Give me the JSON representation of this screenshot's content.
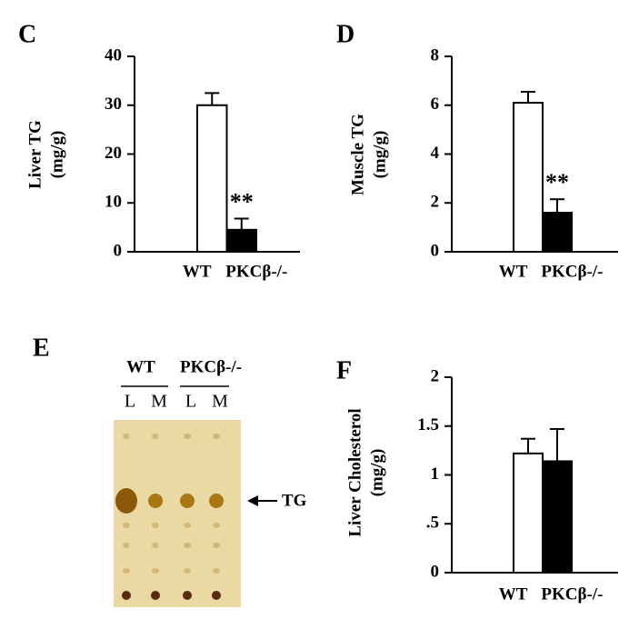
{
  "chart_data": [
    {
      "type": "bar",
      "label": "C",
      "ylabel": [
        "Liver TG",
        "(mg/g)"
      ],
      "categories": [
        "WT",
        "PKCβ-/-"
      ],
      "values": [
        30,
        4.5
      ],
      "errors": [
        2.5,
        2.3
      ],
      "colors": [
        "#ffffff",
        "#000000"
      ],
      "ylim": [
        0,
        40
      ],
      "yticks": [
        0,
        10,
        20,
        30,
        40
      ],
      "annotation": "**"
    },
    {
      "type": "bar",
      "label": "D",
      "ylabel": [
        "Muscle TG",
        "(mg/g)"
      ],
      "categories": [
        "WT",
        "PKCβ-/-"
      ],
      "values": [
        6.1,
        1.6
      ],
      "errors": [
        0.45,
        0.55
      ],
      "colors": [
        "#ffffff",
        "#000000"
      ],
      "ylim": [
        0,
        8
      ],
      "yticks": [
        0,
        2,
        4,
        6,
        8
      ],
      "annotation": "**"
    },
    {
      "type": "image",
      "label": "E",
      "groups": [
        "WT",
        "PKCβ-/-"
      ],
      "lanes": [
        "L",
        "M",
        "L",
        "M"
      ],
      "annotation": "TG"
    },
    {
      "type": "bar",
      "label": "F",
      "ylabel": [
        "Liver Cholesterol",
        "(mg/g)"
      ],
      "categories": [
        "WT",
        "PKCβ-/-"
      ],
      "values": [
        1.22,
        1.14
      ],
      "errors": [
        0.15,
        0.33
      ],
      "colors": [
        "#ffffff",
        "#000000"
      ],
      "ylim": [
        0,
        2
      ],
      "yticks": [
        0,
        {
          "value": 0.5,
          "label": ".5"
        },
        1,
        1.5,
        2
      ]
    }
  ]
}
